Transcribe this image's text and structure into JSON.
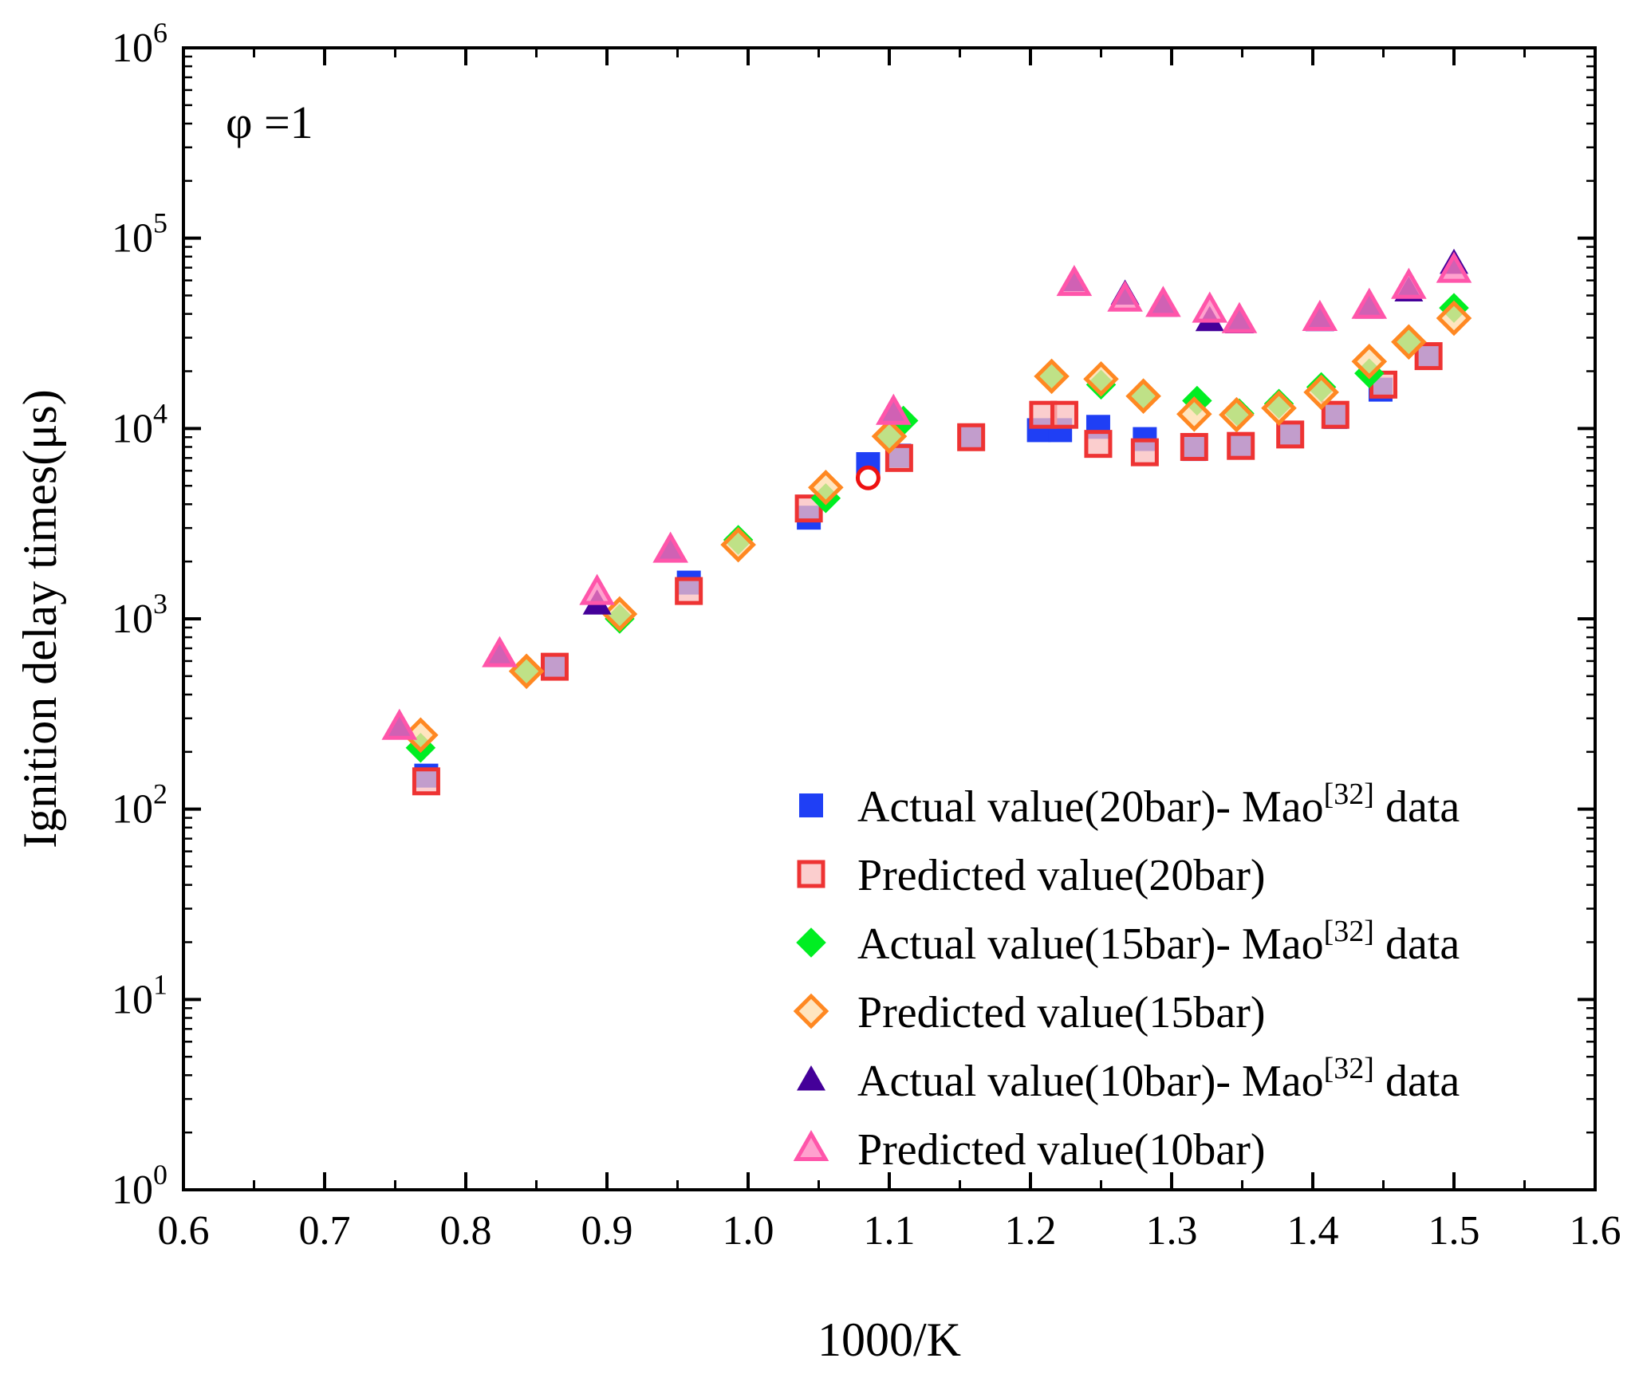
{
  "chart_data": {
    "type": "scatter",
    "title": "",
    "annotation": "φ =1",
    "xlabel": "1000/K",
    "ylabel": "Ignition delay times(μs)",
    "xlim": [
      0.6,
      1.6
    ],
    "ylim_log10": [
      0,
      6
    ],
    "y_scale": "log",
    "x_ticks": [
      "0.6",
      "0.7",
      "0.8",
      "0.9",
      "1.0",
      "1.1",
      "1.2",
      "1.3",
      "1.4",
      "1.5",
      "1.6"
    ],
    "x_tick_values": [
      0.6,
      0.7,
      0.8,
      0.9,
      1.0,
      1.1,
      1.2,
      1.3,
      1.4,
      1.5,
      1.6
    ],
    "y_ticks": [
      {
        "base": "10",
        "exp": "0"
      },
      {
        "base": "10",
        "exp": "1"
      },
      {
        "base": "10",
        "exp": "2"
      },
      {
        "base": "10",
        "exp": "3"
      },
      {
        "base": "10",
        "exp": "4"
      },
      {
        "base": "10",
        "exp": "5"
      },
      {
        "base": "10",
        "exp": "6"
      }
    ],
    "y_tick_values": [
      1,
      10,
      100,
      1000,
      10000,
      100000,
      1000000
    ],
    "legend_position": "bottom-right",
    "series": [
      {
        "name": "Actual value(20bar)- Mao[32] data",
        "marker": "square-filled",
        "color": "#1f3ff5",
        "x": [
          0.772,
          0.863,
          0.958,
          1.043,
          1.085,
          1.107,
          1.158,
          1.206,
          1.221,
          1.248,
          1.281,
          1.316,
          1.349,
          1.384,
          1.416,
          1.448,
          1.482
        ],
        "y": [
          150,
          560,
          1550,
          3400,
          6500,
          7200,
          9000,
          9800,
          9800,
          10200,
          8800,
          7800,
          8000,
          9400,
          11500,
          16000,
          24000
        ]
      },
      {
        "name": "Predicted value(20bar)",
        "marker": "square-open",
        "color": "#ee3333",
        "x": [
          0.772,
          0.863,
          0.958,
          1.043,
          1.107,
          1.158,
          1.209,
          1.224,
          1.248,
          1.281,
          1.316,
          1.349,
          1.384,
          1.416,
          1.45,
          1.482
        ],
        "y": [
          140,
          560,
          1400,
          3800,
          7000,
          9000,
          11800,
          11800,
          8300,
          7500,
          8000,
          8100,
          9300,
          11800,
          17000,
          24000
        ]
      },
      {
        "name": "Actual value(15bar)- Mao[32] data",
        "marker": "diamond-filled",
        "color": "#00ee22",
        "x": [
          0.768,
          0.843,
          0.909,
          0.993,
          1.055,
          1.1,
          1.11,
          1.215,
          1.25,
          1.28,
          1.318,
          1.348,
          1.376,
          1.406,
          1.44,
          1.468,
          1.5
        ],
        "y": [
          210,
          530,
          1000,
          2600,
          4300,
          9200,
          11000,
          19000,
          17000,
          15000,
          14000,
          12000,
          13500,
          16500,
          19500,
          28000,
          43000
        ]
      },
      {
        "name": "Predicted value(15bar)",
        "marker": "diamond-open",
        "color": "#ff8822",
        "x": [
          0.768,
          0.843,
          0.909,
          0.993,
          1.055,
          1.1,
          1.215,
          1.25,
          1.28,
          1.316,
          1.346,
          1.376,
          1.406,
          1.44,
          1.468,
          1.5
        ],
        "y": [
          245,
          530,
          1060,
          2450,
          4900,
          9100,
          18800,
          18200,
          14800,
          11900,
          11800,
          12800,
          15500,
          22500,
          28500,
          38000
        ]
      },
      {
        "name": "Actual value(10bar)- Mao[32] data",
        "marker": "triangle-filled",
        "color": "#440099",
        "x": [
          0.753,
          0.824,
          0.893,
          0.945,
          1.103,
          1.231,
          1.267,
          1.294,
          1.327,
          1.348,
          1.405,
          1.44,
          1.468,
          1.5
        ],
        "y": [
          265,
          640,
          1200,
          2250,
          12000,
          60000,
          51000,
          44000,
          37000,
          36000,
          37000,
          43000,
          53000,
          74000
        ]
      },
      {
        "name": "Predicted value(10bar)",
        "marker": "triangle-open",
        "color": "#ff55aa",
        "x": [
          0.753,
          0.824,
          0.893,
          0.945,
          1.103,
          1.231,
          1.267,
          1.294,
          1.327,
          1.348,
          1.405,
          1.44,
          1.468,
          1.5
        ],
        "y": [
          270,
          650,
          1380,
          2300,
          12200,
          58000,
          48000,
          45000,
          42000,
          37000,
          38000,
          44000,
          56000,
          68000
        ]
      }
    ],
    "highlight": {
      "x": 1.085,
      "y": 5500,
      "marker": "circle-open",
      "color": "#ee1111"
    }
  },
  "legend": {
    "items": [
      {
        "text": "Actual value(20bar)- Mao",
        "sup": "[32]",
        "tail": " data"
      },
      {
        "text": "Predicted value(20bar)",
        "sup": "",
        "tail": ""
      },
      {
        "text": "Actual value(15bar)- Mao",
        "sup": "[32]",
        "tail": " data"
      },
      {
        "text": "Predicted value(15bar)",
        "sup": "",
        "tail": ""
      },
      {
        "text": "Actual value(10bar)- Mao",
        "sup": "[32]",
        "tail": " data"
      },
      {
        "text": "Predicted value(10bar)",
        "sup": "",
        "tail": ""
      }
    ]
  }
}
